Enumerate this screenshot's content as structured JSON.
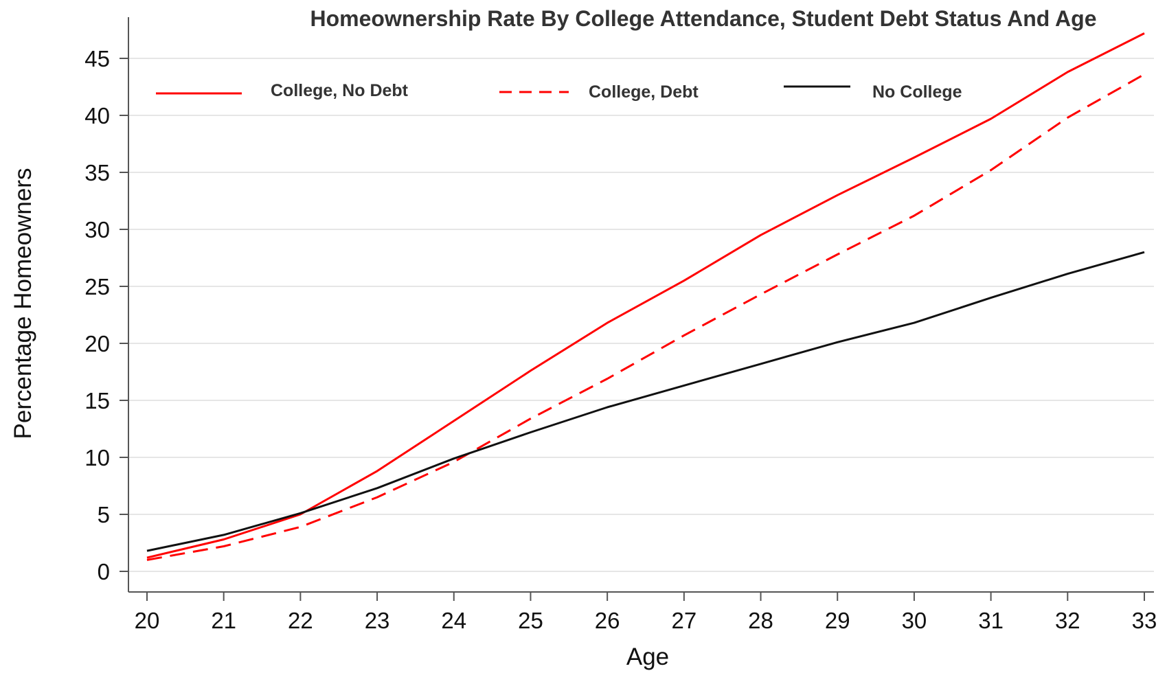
{
  "chart_data": {
    "type": "line",
    "title": "Homeownership Rate By College Attendance, Student Debt Status And Age",
    "xlabel": "Age",
    "ylabel": "Percentage Homeowners",
    "x": [
      20,
      21,
      22,
      23,
      24,
      25,
      26,
      27,
      28,
      29,
      30,
      31,
      32,
      33
    ],
    "xlim": [
      20,
      33
    ],
    "ylim": [
      0,
      45
    ],
    "yticks": [
      0,
      5,
      10,
      15,
      20,
      25,
      30,
      35,
      40,
      45
    ],
    "grid": true,
    "legend_position": "top",
    "series": [
      {
        "name": "College, No Debt",
        "color": "#ff0000",
        "dash": "solid",
        "values": [
          1.2,
          2.8,
          5.0,
          8.8,
          13.2,
          17.6,
          21.8,
          25.5,
          29.5,
          33.0,
          36.3,
          39.7,
          43.8,
          47.2
        ]
      },
      {
        "name": "College, Debt",
        "color": "#ff0000",
        "dash": "dashed",
        "values": [
          1.0,
          2.2,
          3.9,
          6.5,
          9.6,
          13.4,
          16.9,
          20.7,
          24.3,
          27.8,
          31.2,
          35.2,
          39.8,
          43.6
        ]
      },
      {
        "name": "No College",
        "color": "#111111",
        "dash": "solid",
        "values": [
          1.8,
          3.2,
          5.1,
          7.3,
          9.9,
          12.2,
          14.4,
          16.3,
          18.2,
          20.1,
          21.8,
          24.0,
          26.1,
          28.0
        ]
      }
    ]
  }
}
